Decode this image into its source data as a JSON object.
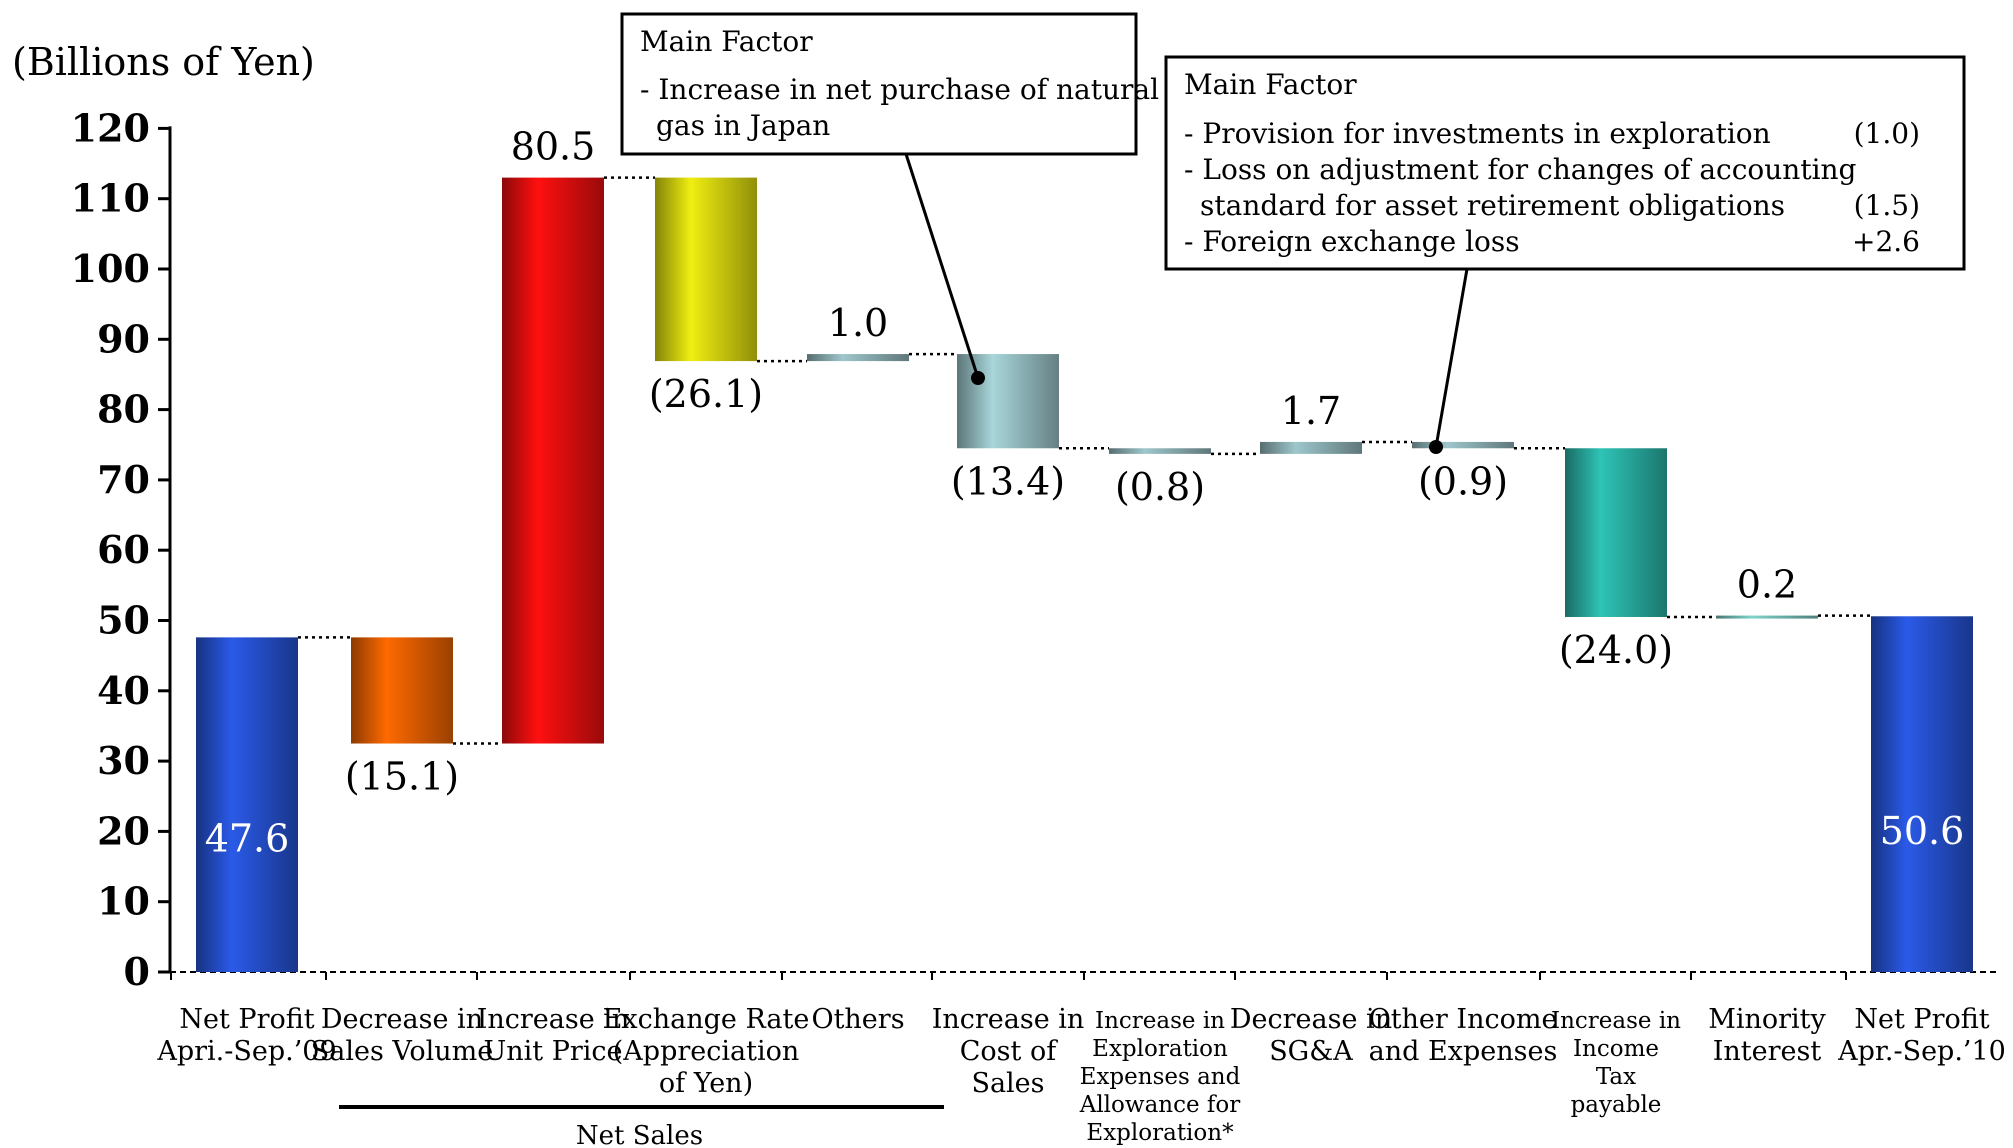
{
  "chart_data": {
    "type": "bar",
    "subtype": "waterfall",
    "ylabel": "(Billions of Yen)",
    "ylim": [
      0,
      120
    ],
    "yticks": [
      0,
      10,
      20,
      30,
      40,
      50,
      60,
      70,
      80,
      90,
      100,
      110,
      120
    ],
    "grid": false,
    "categories": [
      {
        "lines": [
          "Net Profit",
          "Apri.-Sep.’09"
        ]
      },
      {
        "lines": [
          "Decrease in",
          "Sales Volume"
        ]
      },
      {
        "lines": [
          "Increase in",
          "Unit Price"
        ]
      },
      {
        "lines": [
          "Exchange Rate",
          "(Appreciation",
          "of Yen)"
        ]
      },
      {
        "lines": [
          "Others"
        ]
      },
      {
        "lines": [
          "Increase in",
          "Cost of",
          "Sales"
        ]
      },
      {
        "lines": [
          "Increase in",
          "Exploration",
          "Expenses and",
          "Allowance for",
          "Exploration*"
        ]
      },
      {
        "lines": [
          "Decrease in",
          "SG&A"
        ]
      },
      {
        "lines": [
          "Other Income",
          "and Expenses"
        ]
      },
      {
        "lines": [
          "Increase in",
          "Income",
          "Tax",
          "payable"
        ]
      },
      {
        "lines": [
          "Minority",
          "Interest"
        ]
      },
      {
        "lines": [
          "Net Profit",
          "Apr.-Sep.’10"
        ]
      }
    ],
    "bars": [
      {
        "kind": "total",
        "start": 0,
        "end": 47.6,
        "label": "47.6",
        "label_pos": "inside",
        "color": "#2a5ae8"
      },
      {
        "kind": "delta",
        "start": 47.6,
        "end": 32.5,
        "label": "(15.1)",
        "label_pos": "below",
        "color": "#ff6a00"
      },
      {
        "kind": "delta",
        "start": 32.5,
        "end": 113.0,
        "label": "80.5",
        "label_pos": "above",
        "color": "#ff1010"
      },
      {
        "kind": "delta",
        "start": 113.0,
        "end": 86.9,
        "label": "(26.1)",
        "label_pos": "below",
        "color": "#f0ee10"
      },
      {
        "kind": "delta",
        "start": 86.9,
        "end": 87.9,
        "label": "1.0",
        "label_pos": "above",
        "color": "#9ec7cc"
      },
      {
        "kind": "delta",
        "start": 87.9,
        "end": 74.5,
        "label": "(13.4)",
        "label_pos": "below",
        "color": "#a8d6da"
      },
      {
        "kind": "delta",
        "start": 74.5,
        "end": 73.7,
        "label": "(0.8)",
        "label_pos": "below",
        "color": "#9ec7cc"
      },
      {
        "kind": "delta",
        "start": 73.7,
        "end": 75.4,
        "label": "1.7",
        "label_pos": "above",
        "color": "#9ec7cc"
      },
      {
        "kind": "delta",
        "start": 75.4,
        "end": 74.5,
        "label": "(0.9)",
        "label_pos": "below",
        "color": "#9ec7cc"
      },
      {
        "kind": "delta",
        "start": 74.5,
        "end": 50.5,
        "label": "(24.0)",
        "label_pos": "below",
        "color": "#2ec4b6"
      },
      {
        "kind": "delta",
        "start": 50.5,
        "end": 50.7,
        "label": "0.2",
        "label_pos": "above",
        "color": "#7fd4cc"
      },
      {
        "kind": "total",
        "start": 0,
        "end": 50.6,
        "label": "50.6",
        "label_pos": "inside",
        "color": "#2a5ae8"
      }
    ],
    "group_bracket": {
      "label": "Net Sales",
      "from_index": 1,
      "to_index": 4
    },
    "annotations": [
      {
        "id": "box-1",
        "title": "Main Factor",
        "lines": [
          {
            "text": "- Increase in net purchase of natural",
            "value": ""
          },
          {
            "text": "  gas in Japan",
            "value": ""
          }
        ],
        "points_to_index": 5
      },
      {
        "id": "box-2",
        "title": "Main Factor",
        "lines": [
          {
            "text": "- Provision for investments in exploration",
            "value": "(1.0)"
          },
          {
            "text": "- Loss on adjustment for changes of accounting",
            "value": ""
          },
          {
            "text": "  standard for asset retirement obligations",
            "value": "(1.5)"
          },
          {
            "text": "- Foreign exchange loss",
            "value": "+2.6"
          }
        ],
        "points_to_index": 8
      }
    ]
  }
}
